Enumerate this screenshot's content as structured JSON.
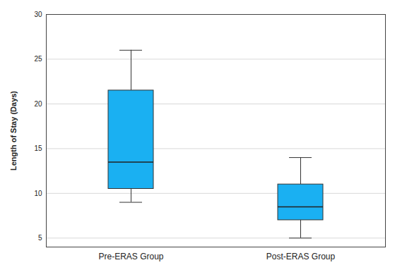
{
  "chart_data": {
    "type": "box",
    "y_label": "Length of Stay (Days)",
    "categories": [
      "Pre-ERAS Group",
      "Post-ERAS Group"
    ],
    "min": [
      9,
      5
    ],
    "q1": [
      10.5,
      7
    ],
    "median": [
      13.5,
      8.5
    ],
    "q3": [
      21.5,
      11
    ],
    "max": [
      26,
      14
    ],
    "color": "#1ab0f2",
    "ylim": [
      4,
      30
    ],
    "yticks": [
      5,
      10,
      15,
      20,
      25,
      30
    ],
    "grid": true
  }
}
